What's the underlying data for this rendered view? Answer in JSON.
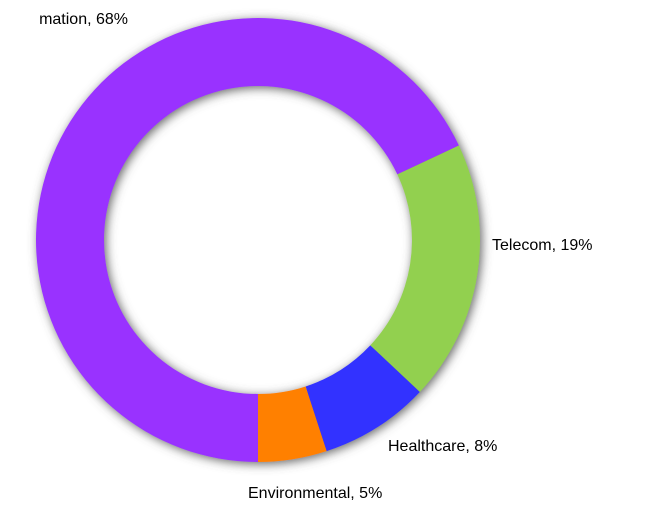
{
  "chart_data": {
    "type": "donut",
    "labels": [
      "mation, 68%",
      "Telecom, 19%",
      "Healthcare, 8%",
      "Environmental, 5%"
    ],
    "values": [
      68,
      19,
      8,
      5
    ],
    "colors": [
      "#9933ff",
      "#92d050",
      "#3333ff",
      "#ff8000"
    ]
  }
}
